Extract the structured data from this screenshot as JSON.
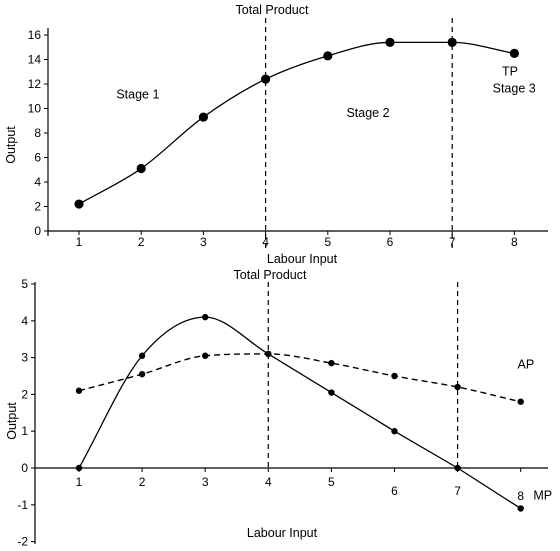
{
  "chart_data": [
    {
      "type": "line",
      "title": "Total Product",
      "xlabel": "Labour Input",
      "ylabel": "Output",
      "xlim": [
        0.5,
        8.5
      ],
      "ylim": [
        0,
        16
      ],
      "x_ticks": [
        "1",
        "2",
        "3",
        "4",
        "5",
        "6",
        "7",
        "8"
      ],
      "y_ticks": [
        "0",
        "2",
        "4",
        "6",
        "8",
        "10",
        "12",
        "14",
        "16"
      ],
      "grid": false,
      "series": [
        {
          "name": "TP",
          "x": [
            1,
            2,
            3,
            4,
            5,
            6,
            7,
            8
          ],
          "values": [
            2.2,
            5.1,
            9.3,
            12.4,
            14.3,
            15.4,
            15.4,
            14.5
          ],
          "style": "solid",
          "markers": "large"
        }
      ],
      "stage_boundaries": [
        4,
        7
      ],
      "annotations": [
        {
          "text": "Stage 1",
          "x": 1.6,
          "y": 10.8
        },
        {
          "text": "Stage 2",
          "x": 5.3,
          "y": 9.3
        },
        {
          "text": "Stage 3",
          "x": 7.65,
          "y": 11.3
        },
        {
          "text": "TP",
          "x": 7.8,
          "y": 12.7
        }
      ]
    },
    {
      "type": "line",
      "title": "Total Product",
      "xlabel": "Labour Input",
      "ylabel": "Output",
      "xlim": [
        0.5,
        8.5
      ],
      "ylim": [
        -2,
        5
      ],
      "x_ticks": [
        "1",
        "2",
        "3",
        "4",
        "5",
        "6",
        "7",
        "8"
      ],
      "y_ticks": [
        "-2",
        "-1",
        "0",
        "1",
        "2",
        "3",
        "4",
        "5"
      ],
      "grid": false,
      "series": [
        {
          "name": "MP",
          "x": [
            1,
            2,
            3,
            4,
            5,
            6,
            7,
            8
          ],
          "values": [
            0,
            3.05,
            4.1,
            3.1,
            2.05,
            1.0,
            0,
            -1.1
          ],
          "style": "solid",
          "markers": "small"
        },
        {
          "name": "AP",
          "x": [
            1,
            2,
            3,
            4,
            5,
            6,
            7,
            8
          ],
          "values": [
            2.1,
            2.55,
            3.05,
            3.1,
            2.85,
            2.5,
            2.2,
            1.8
          ],
          "style": "dashed",
          "markers": "small"
        }
      ],
      "stage_boundaries": [
        4,
        7
      ],
      "annotations": [
        {
          "text": "AP",
          "x": 7.95,
          "y": 2.7
        },
        {
          "text": "MP",
          "x": 8.2,
          "y": -0.85
        }
      ]
    }
  ]
}
